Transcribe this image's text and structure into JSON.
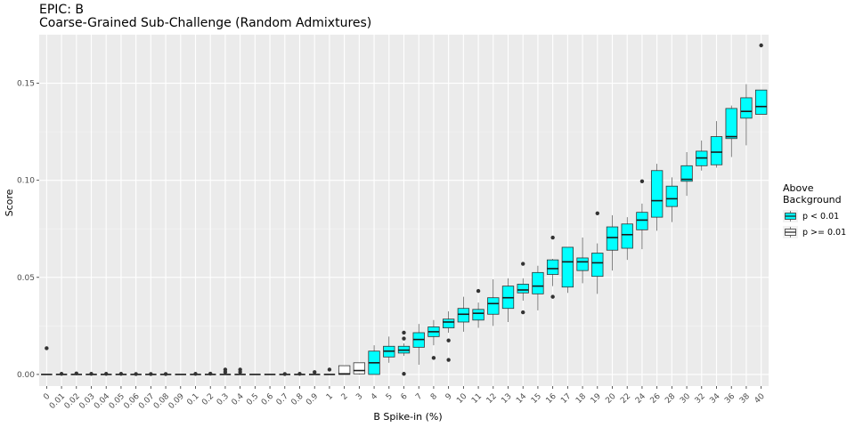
{
  "chart_data": {
    "type": "boxplot",
    "title": "EPIC: B",
    "subtitle": "Coarse-Grained Sub-Challenge (Random Admixtures)",
    "xlabel": "B Spike-in (%)",
    "ylabel": "Score",
    "ylim": [
      -0.006,
      0.175
    ],
    "yticks": [
      0.0,
      0.05,
      0.1,
      0.15
    ],
    "ytick_labels": [
      "0.00",
      "0.05",
      "0.10",
      "0.15"
    ],
    "grid": true,
    "legend": {
      "title": "Above\nBackground",
      "placement": "right",
      "entries": [
        {
          "label": "p < 0.01",
          "color": "#00FFFF"
        },
        {
          "label": "p >= 0.01",
          "color": "#FFFFFF"
        }
      ]
    },
    "categories": [
      "0",
      "0.01",
      "0.02",
      "0.03",
      "0.04",
      "0.05",
      "0.06",
      "0.07",
      "0.08",
      "0.09",
      "0.1",
      "0.2",
      "0.3",
      "0.4",
      "0.5",
      "0.6",
      "0.7",
      "0.8",
      "0.9",
      "1",
      "2",
      "3",
      "4",
      "5",
      "6",
      "7",
      "8",
      "9",
      "10",
      "11",
      "12",
      "13",
      "14",
      "15",
      "16",
      "17",
      "18",
      "19",
      "20",
      "22",
      "24",
      "26",
      "28",
      "30",
      "32",
      "34",
      "36",
      "38",
      "40"
    ],
    "boxes": [
      {
        "g": "p >= 0.01",
        "min": 0,
        "q1": 0,
        "med": 0,
        "q3": 0,
        "max": 0,
        "outliers": [
          0.0135
        ]
      },
      {
        "g": "p >= 0.01",
        "min": 0,
        "q1": 0,
        "med": 0,
        "q3": 0,
        "max": 0,
        "outliers": [
          0.0003
        ]
      },
      {
        "g": "p >= 0.01",
        "min": 0,
        "q1": 0,
        "med": 0,
        "q3": 0,
        "max": 0,
        "outliers": [
          0.0005
        ]
      },
      {
        "g": "p >= 0.01",
        "min": 0,
        "q1": 0,
        "med": 0,
        "q3": 0,
        "max": 0,
        "outliers": [
          0.0003
        ]
      },
      {
        "g": "p >= 0.01",
        "min": 0,
        "q1": 0,
        "med": 0,
        "q3": 0,
        "max": 0,
        "outliers": [
          0.0003
        ]
      },
      {
        "g": "p >= 0.01",
        "min": 0,
        "q1": 0,
        "med": 0,
        "q3": 0,
        "max": 0,
        "outliers": [
          0.0003
        ]
      },
      {
        "g": "p >= 0.01",
        "min": 0,
        "q1": 0,
        "med": 0,
        "q3": 0,
        "max": 0,
        "outliers": [
          0.0002
        ]
      },
      {
        "g": "p >= 0.01",
        "min": 0,
        "q1": 0,
        "med": 0,
        "q3": 0,
        "max": 0,
        "outliers": [
          0.0002
        ]
      },
      {
        "g": "p >= 0.01",
        "min": 0,
        "q1": 0,
        "med": 0,
        "q3": 0,
        "max": 0,
        "outliers": [
          0.0002
        ]
      },
      {
        "g": "p >= 0.01",
        "min": 0,
        "q1": 0,
        "med": 0,
        "q3": 0,
        "max": 0,
        "outliers": []
      },
      {
        "g": "p >= 0.01",
        "min": 0,
        "q1": 0,
        "med": 0,
        "q3": 0,
        "max": 0,
        "outliers": [
          0.0003
        ]
      },
      {
        "g": "p >= 0.01",
        "min": 0,
        "q1": 0,
        "med": 0,
        "q3": 0,
        "max": 0,
        "outliers": [
          0.0004
        ]
      },
      {
        "g": "p >= 0.01",
        "min": 0,
        "q1": 0,
        "med": 0,
        "q3": 0,
        "max": 0,
        "outliers": [
          0.0025,
          0.0012
        ]
      },
      {
        "g": "p >= 0.01",
        "min": 0,
        "q1": 0,
        "med": 0,
        "q3": 0,
        "max": 0,
        "outliers": [
          0.0025,
          0.0012
        ]
      },
      {
        "g": "p >= 0.01",
        "min": 0,
        "q1": 0,
        "med": 0,
        "q3": 0,
        "max": 0,
        "outliers": []
      },
      {
        "g": "p >= 0.01",
        "min": 0,
        "q1": 0,
        "med": 0,
        "q3": 0,
        "max": 0,
        "outliers": []
      },
      {
        "g": "p >= 0.01",
        "min": 0,
        "q1": 0,
        "med": 0,
        "q3": 0,
        "max": 0,
        "outliers": [
          0.0002
        ]
      },
      {
        "g": "p >= 0.01",
        "min": 0,
        "q1": 0,
        "med": 0,
        "q3": 0,
        "max": 0,
        "outliers": [
          0.0003
        ]
      },
      {
        "g": "p >= 0.01",
        "min": 0,
        "q1": 0,
        "med": 0,
        "q3": 0,
        "max": 0,
        "outliers": [
          0.0012
        ]
      },
      {
        "g": "p >= 0.01",
        "min": 0,
        "q1": 0,
        "med": 0,
        "q3": 0,
        "max": 0,
        "outliers": [
          0.0025
        ]
      },
      {
        "g": "p >= 0.01",
        "min": 0,
        "q1": 0,
        "med": 0.0003,
        "q3": 0.0045,
        "max": 0.0045,
        "outliers": []
      },
      {
        "g": "p >= 0.01",
        "min": 0,
        "q1": 0.0003,
        "med": 0.002,
        "q3": 0.006,
        "max": 0.006,
        "outliers": []
      },
      {
        "g": "p < 0.01",
        "min": 0,
        "q1": 0,
        "med": 0.006,
        "q3": 0.012,
        "max": 0.015,
        "outliers": []
      },
      {
        "g": "p < 0.01",
        "min": 0.006,
        "q1": 0.009,
        "med": 0.012,
        "q3": 0.0145,
        "max": 0.0195,
        "outliers": []
      },
      {
        "g": "p < 0.01",
        "min": 0.0095,
        "q1": 0.011,
        "med": 0.0125,
        "q3": 0.0145,
        "max": 0.016,
        "outliers": [
          0.0215,
          0.0185,
          0.0003
        ]
      },
      {
        "g": "p < 0.01",
        "min": 0.005,
        "q1": 0.014,
        "med": 0.018,
        "q3": 0.0215,
        "max": 0.026,
        "outliers": []
      },
      {
        "g": "p < 0.01",
        "min": 0.015,
        "q1": 0.0195,
        "med": 0.022,
        "q3": 0.0245,
        "max": 0.028,
        "outliers": [
          0.0085
        ]
      },
      {
        "g": "p < 0.01",
        "min": 0.0215,
        "q1": 0.024,
        "med": 0.027,
        "q3": 0.0285,
        "max": 0.0325,
        "outliers": [
          0.0175,
          0.0075
        ]
      },
      {
        "g": "p < 0.01",
        "min": 0.022,
        "q1": 0.027,
        "med": 0.031,
        "q3": 0.034,
        "max": 0.04,
        "outliers": []
      },
      {
        "g": "p < 0.01",
        "min": 0.024,
        "q1": 0.028,
        "med": 0.0315,
        "q3": 0.0335,
        "max": 0.037,
        "outliers": [
          0.043
        ]
      },
      {
        "g": "p < 0.01",
        "min": 0.025,
        "q1": 0.031,
        "med": 0.0365,
        "q3": 0.0395,
        "max": 0.049,
        "outliers": []
      },
      {
        "g": "p < 0.01",
        "min": 0.027,
        "q1": 0.034,
        "med": 0.0395,
        "q3": 0.0455,
        "max": 0.0495,
        "outliers": []
      },
      {
        "g": "p < 0.01",
        "min": 0.038,
        "q1": 0.042,
        "med": 0.0435,
        "q3": 0.0465,
        "max": 0.0495,
        "outliers": [
          0.057,
          0.032
        ]
      },
      {
        "g": "p < 0.01",
        "min": 0.033,
        "q1": 0.0415,
        "med": 0.0455,
        "q3": 0.0525,
        "max": 0.056,
        "outliers": []
      },
      {
        "g": "p < 0.01",
        "min": 0.0455,
        "q1": 0.0515,
        "med": 0.0545,
        "q3": 0.059,
        "max": 0.0595,
        "outliers": [
          0.0705,
          0.04
        ]
      },
      {
        "g": "p < 0.01",
        "min": 0.042,
        "q1": 0.045,
        "med": 0.058,
        "q3": 0.0655,
        "max": 0.0655,
        "outliers": []
      },
      {
        "g": "p < 0.01",
        "min": 0.047,
        "q1": 0.0535,
        "med": 0.058,
        "q3": 0.06,
        "max": 0.0705,
        "outliers": []
      },
      {
        "g": "p < 0.01",
        "min": 0.0415,
        "q1": 0.0505,
        "med": 0.0575,
        "q3": 0.0625,
        "max": 0.0675,
        "outliers": [
          0.083
        ]
      },
      {
        "g": "p < 0.01",
        "min": 0.0535,
        "q1": 0.064,
        "med": 0.0705,
        "q3": 0.076,
        "max": 0.082,
        "outliers": []
      },
      {
        "g": "p < 0.01",
        "min": 0.059,
        "q1": 0.065,
        "med": 0.072,
        "q3": 0.0775,
        "max": 0.081,
        "outliers": []
      },
      {
        "g": "p < 0.01",
        "min": 0.0645,
        "q1": 0.0745,
        "med": 0.0795,
        "q3": 0.0835,
        "max": 0.088,
        "outliers": [
          0.0995
        ]
      },
      {
        "g": "p < 0.01",
        "min": 0.074,
        "q1": 0.081,
        "med": 0.0895,
        "q3": 0.105,
        "max": 0.1085,
        "outliers": []
      },
      {
        "g": "p < 0.01",
        "min": 0.0785,
        "q1": 0.0865,
        "med": 0.0905,
        "q3": 0.097,
        "max": 0.1015,
        "outliers": []
      },
      {
        "g": "p < 0.01",
        "min": 0.092,
        "q1": 0.0995,
        "med": 0.1005,
        "q3": 0.1075,
        "max": 0.1145,
        "outliers": []
      },
      {
        "g": "p < 0.01",
        "min": 0.105,
        "q1": 0.1075,
        "med": 0.1115,
        "q3": 0.115,
        "max": 0.1205,
        "outliers": []
      },
      {
        "g": "p < 0.01",
        "min": 0.1065,
        "q1": 0.108,
        "med": 0.1145,
        "q3": 0.1225,
        "max": 0.1305,
        "outliers": []
      },
      {
        "g": "p < 0.01",
        "min": 0.112,
        "q1": 0.1215,
        "med": 0.1225,
        "q3": 0.137,
        "max": 0.1385,
        "outliers": []
      },
      {
        "g": "p < 0.01",
        "min": 0.118,
        "q1": 0.132,
        "med": 0.1355,
        "q3": 0.1425,
        "max": 0.1495,
        "outliers": []
      },
      {
        "g": "p < 0.01",
        "min": 0.134,
        "q1": 0.134,
        "med": 0.138,
        "q3": 0.1465,
        "max": 0.1465,
        "outliers": [
          0.1695
        ]
      }
    ]
  }
}
